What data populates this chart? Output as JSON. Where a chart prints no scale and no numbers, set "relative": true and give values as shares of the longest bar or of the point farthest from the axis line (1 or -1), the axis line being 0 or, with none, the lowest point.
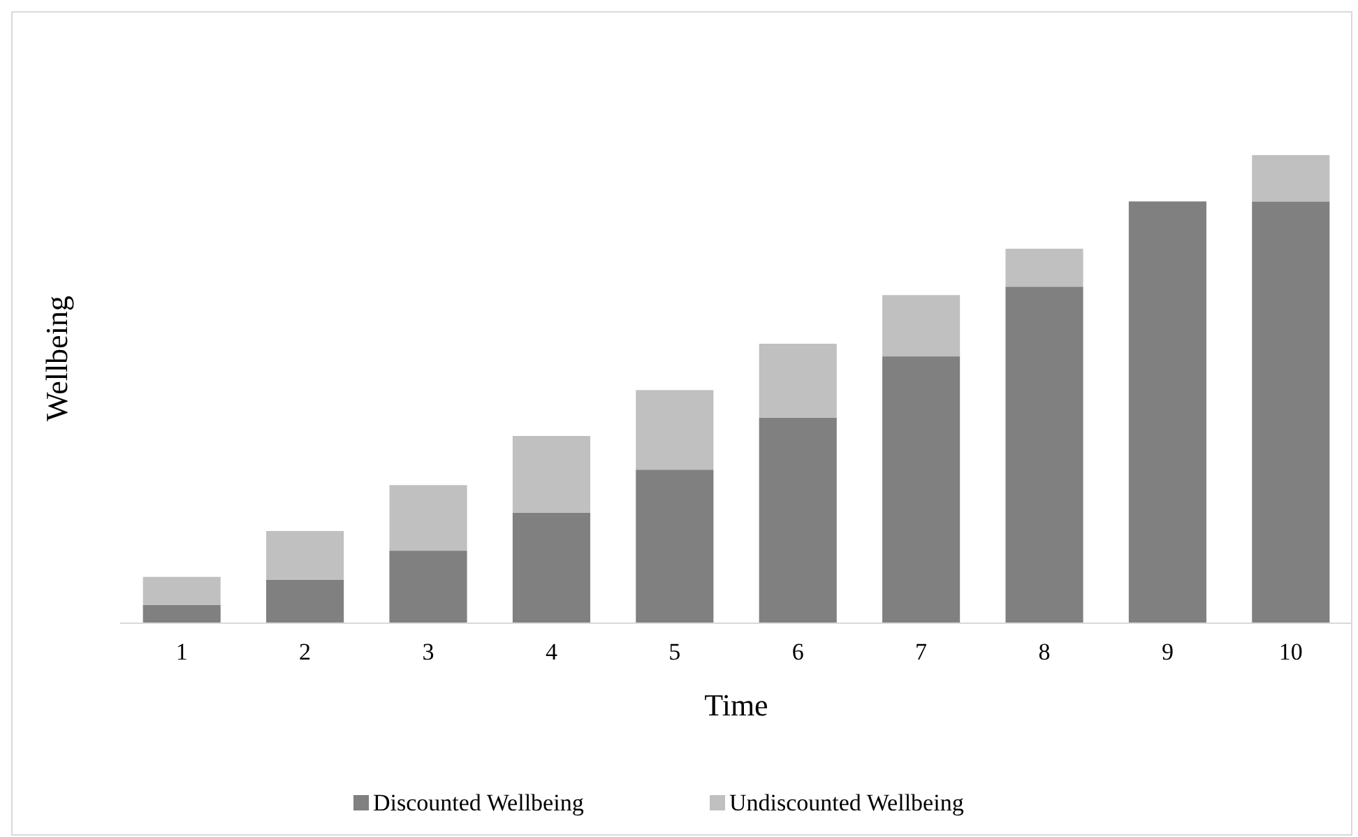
{
  "chart_data": {
    "type": "bar",
    "stacked": true,
    "relative": true,
    "xlabel": "Time",
    "ylabel": "Wellbeing",
    "categories": [
      "1",
      "2",
      "3",
      "4",
      "5",
      "6",
      "7",
      "8",
      "9",
      "10"
    ],
    "series": [
      {
        "name": "Discounted Wellbeing",
        "color": "#808080",
        "values": [
          0.039,
          0.093,
          0.155,
          0.236,
          0.328,
          0.439,
          0.57,
          0.719,
          0.901,
          0.901
        ]
      },
      {
        "name": "Undiscounted Wellbeing",
        "color": "#c0c0c0",
        "values": [
          0.06,
          0.104,
          0.14,
          0.164,
          0.17,
          0.158,
          0.131,
          0.081,
          0,
          0.099
        ]
      }
    ],
    "legend": "bottom"
  }
}
